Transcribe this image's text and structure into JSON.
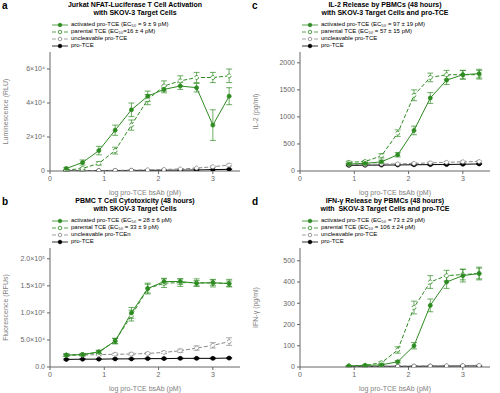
{
  "chart_data": [
    {
      "type": "line",
      "annotations": [
        "a"
      ],
      "title": "Jurkat NFAT-Luciferase T Cell Activation\nwith SKOV-3 Target Cells",
      "xlabel": "log pro-TCE bsAb (pM)",
      "ylabel": "Luminescence (RLU)",
      "xlim": [
        0,
        3.5
      ],
      "xticks": [
        0,
        1,
        2,
        3
      ],
      "ylim": [
        0,
        70000
      ],
      "yticks": [
        0,
        {
          "value": 20000,
          "label": "2×10⁴"
        },
        {
          "value": 40000,
          "label": "4×10⁴"
        },
        {
          "value": 60000,
          "label": "6×10⁴"
        }
      ],
      "legend": "top",
      "x": [
        0.3,
        0.6,
        0.9,
        1.2,
        1.5,
        1.8,
        2.1,
        2.4,
        2.7,
        3.0,
        3.3
      ],
      "series": [
        {
          "name": "activated pro-TCE (EC₅₀ = 9 ± 9 pM)",
          "color": "#2e8b22",
          "marker": "circle",
          "line_style": "solid",
          "values": [
            1500,
            5000,
            12000,
            24000,
            36000,
            44000,
            48000,
            50000,
            49000,
            27000,
            44000
          ],
          "error": [
            600,
            1500,
            2500,
            3000,
            4000,
            3000,
            2000,
            2000,
            2500,
            9000,
            5000
          ]
        },
        {
          "name": "parental TCE (EC₅₀=16 ± 4 pM)",
          "color": "#2e8b22",
          "marker": "open_circle",
          "line_style": "dashed",
          "values": [
            500,
            1500,
            4500,
            12000,
            27000,
            42000,
            50000,
            53000,
            55000,
            55000,
            56000
          ],
          "error": [
            200,
            500,
            1000,
            2000,
            3000,
            3000,
            3000,
            3000,
            3000,
            3000,
            4000
          ]
        },
        {
          "name": "uncleavable pro-TCE",
          "color": "#888888",
          "marker": "open_circle",
          "line_style": "dashed",
          "values": [
            200,
            250,
            300,
            400,
            500,
            700,
            900,
            1200,
            1700,
            2500,
            3500
          ],
          "error": [
            80,
            80,
            80,
            100,
            100,
            100,
            150,
            200,
            300,
            400,
            600
          ]
        },
        {
          "name": "pro-TCE",
          "color": "#000000",
          "marker": "circle",
          "line_style": "solid",
          "values": [
            100,
            150,
            200,
            250,
            300,
            350,
            450,
            500,
            600,
            800,
            1000
          ],
          "error": [
            40,
            40,
            50,
            50,
            50,
            50,
            80,
            80,
            80,
            100,
            150
          ]
        }
      ]
    },
    {
      "type": "line",
      "annotations": [
        "b"
      ],
      "title": "PBMC T Cell Cytotoxicity (48 hours)\nwith SKOV-3 Target Cells",
      "xlabel": "log pro-TCE bsAb (pM)",
      "ylabel": "Fluorescence (RFUs)",
      "xlim": [
        0,
        3.5
      ],
      "xticks": [
        0,
        1,
        2,
        3
      ],
      "ylim": [
        0,
        220000
      ],
      "yticks": [
        {
          "value": 0,
          "label": "0.0"
        },
        {
          "value": 50000,
          "label": "5.0×10⁴"
        },
        {
          "value": 100000,
          "label": "1.0×10⁵"
        },
        {
          "value": 150000,
          "label": "1.5×10⁵"
        },
        {
          "value": 200000,
          "label": "2.0×10⁵"
        }
      ],
      "legend": "top",
      "x": [
        0.3,
        0.6,
        0.9,
        1.2,
        1.5,
        1.8,
        2.1,
        2.4,
        2.7,
        3.0,
        3.3
      ],
      "series": [
        {
          "name": "activated pro-TCE (EC₅₀ = 28 ± 6 pM)",
          "color": "#2e8b22",
          "marker": "circle",
          "line_style": "solid",
          "values": [
            22000,
            23000,
            28000,
            48000,
            100000,
            145000,
            158000,
            158000,
            155000,
            156000,
            154000
          ],
          "error": [
            2000,
            2000,
            3000,
            5000,
            10000,
            8000,
            6000,
            5000,
            5000,
            5000,
            5000
          ]
        },
        {
          "name": "parental TCE (EC₅₀ = 33 ± 9 pM)",
          "color": "#2e8b22",
          "marker": "open_circle",
          "line_style": "dashed",
          "values": [
            22000,
            23000,
            27000,
            48000,
            95000,
            145000,
            155000,
            156000,
            156000,
            155000,
            155000
          ],
          "error": [
            2000,
            2000,
            3000,
            5000,
            10000,
            10000,
            8000,
            7000,
            7000,
            7000,
            7000
          ]
        },
        {
          "name": "uncleavable pro-TCEn",
          "color": "#888888",
          "marker": "open_circle",
          "line_style": "dashed",
          "values": [
            22000,
            22000,
            23000,
            23500,
            24000,
            25000,
            27000,
            30000,
            35000,
            40000,
            47000
          ],
          "error": [
            2000,
            2000,
            2000,
            2000,
            2000,
            2000,
            2000,
            3000,
            4000,
            5000,
            7000
          ]
        },
        {
          "name": "pro-TCE",
          "color": "#000000",
          "marker": "circle",
          "line_style": "solid",
          "values": [
            14000,
            14500,
            14500,
            15000,
            15000,
            15500,
            15500,
            16000,
            16000,
            16000,
            16500
          ],
          "error": [
            1000,
            1000,
            1000,
            1000,
            1000,
            1000,
            1000,
            1000,
            1000,
            1000,
            1000
          ]
        }
      ]
    },
    {
      "type": "line",
      "annotations": [
        "c"
      ],
      "title": "IL-2 Release by PBMCs (48 hours)\nwith SKOV-3 Target Cells and pro-TCE",
      "xlabel": "log pro-TCE bsAb (pM)",
      "ylabel": "IL-2 (pg/ml)",
      "xlim": [
        0,
        3.5
      ],
      "xticks": [
        0,
        1,
        2,
        3
      ],
      "ylim": [
        0,
        2200
      ],
      "yticks": [
        0,
        500,
        1000,
        1500,
        2000
      ],
      "legend": "top",
      "x": [
        0.9,
        1.2,
        1.5,
        1.8,
        2.1,
        2.4,
        2.7,
        3.0,
        3.3
      ],
      "series": [
        {
          "name": "activated pro-TCE (EC₅₀ = 97 ± 19 pM)",
          "color": "#2e8b22",
          "marker": "circle",
          "line_style": "solid",
          "values": [
            130,
            140,
            170,
            300,
            750,
            1350,
            1680,
            1780,
            1800
          ],
          "error": [
            20,
            20,
            30,
            40,
            80,
            100,
            80,
            80,
            80
          ]
        },
        {
          "name": "parental TCE (EC₅₀ = 57 ± 15 pM)",
          "color": "#2e8b22",
          "marker": "open_circle",
          "line_style": "dashed",
          "values": [
            160,
            175,
            280,
            700,
            1400,
            1730,
            1780,
            1780,
            1780
          ],
          "error": [
            20,
            20,
            40,
            60,
            100,
            80,
            80,
            80,
            80
          ]
        },
        {
          "name": "uncleavable pro-TCE",
          "color": "#888888",
          "marker": "open_circle",
          "line_style": "dashed",
          "values": [
            120,
            120,
            130,
            130,
            140,
            150,
            160,
            170,
            175
          ],
          "error": [
            15,
            15,
            15,
            15,
            15,
            15,
            15,
            15,
            15
          ]
        },
        {
          "name": "pro-TCE",
          "color": "#000000",
          "marker": "circle",
          "line_style": "solid",
          "values": [
            105,
            108,
            110,
            112,
            115,
            118,
            120,
            125,
            130
          ],
          "error": [
            10,
            10,
            10,
            10,
            10,
            10,
            10,
            10,
            10
          ]
        }
      ]
    },
    {
      "type": "line",
      "annotations": [
        "d"
      ],
      "title": "IFN-γ Release by PBMCs (48 hours)\nwith  SKOV-3 Target Cells and pro-TCE",
      "xlabel": "log pro-TCE bsAb (pM)",
      "ylabel": "IFN-γ (pg/ml)",
      "xlim": [
        0,
        3.5
      ],
      "xticks": [
        0,
        1,
        2,
        3
      ],
      "ylim": [
        0,
        560
      ],
      "yticks": [
        0,
        100,
        200,
        300,
        400,
        500
      ],
      "legend": "top",
      "x": [
        0.9,
        1.2,
        1.5,
        1.8,
        2.1,
        2.4,
        2.7,
        3.0,
        3.3
      ],
      "series": [
        {
          "name": "activated pro-TCE (EC₅₀ = 73 ± 29 pM)",
          "color": "#2e8b22",
          "marker": "circle",
          "line_style": "solid",
          "values": [
            5,
            7,
            10,
            25,
            100,
            290,
            400,
            430,
            440
          ],
          "error": [
            2,
            2,
            3,
            5,
            15,
            30,
            30,
            30,
            30
          ]
        },
        {
          "name": "parental TCE (EC₅₀ = 106 ± 24 pM)",
          "color": "#2e8b22",
          "marker": "open_circle",
          "line_style": "dashed",
          "values": [
            5,
            8,
            20,
            80,
            280,
            400,
            430,
            435,
            440
          ],
          "error": [
            2,
            2,
            5,
            15,
            30,
            30,
            25,
            25,
            25
          ]
        },
        {
          "name": "uncleavable pro-TCE",
          "color": "#888888",
          "marker": "open_circle",
          "line_style": "dashed",
          "values": [
            3,
            3,
            4,
            4,
            5,
            5,
            6,
            7,
            8
          ],
          "error": [
            1,
            1,
            1,
            1,
            1,
            1,
            1,
            1,
            1
          ]
        },
        {
          "name": "pro-TCE",
          "color": "#000000",
          "marker": "circle",
          "line_style": "solid",
          "values": [
            2,
            2,
            3,
            3,
            3,
            4,
            4,
            5,
            5
          ],
          "error": [
            1,
            1,
            1,
            1,
            1,
            1,
            1,
            1,
            1
          ]
        }
      ]
    }
  ]
}
